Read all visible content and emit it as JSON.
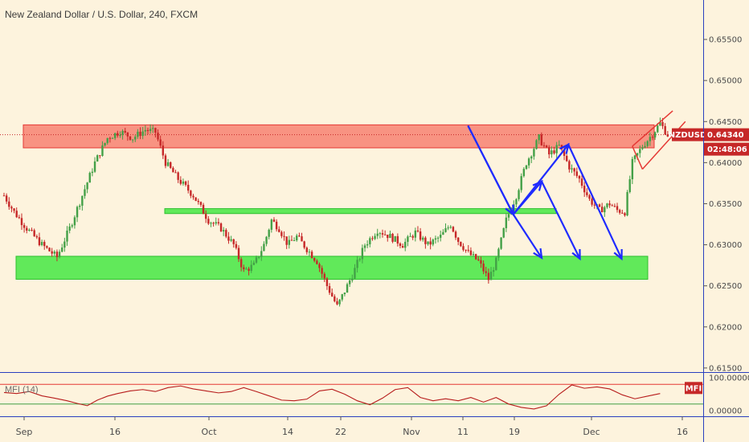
{
  "chart_data": {
    "type": "candlestick",
    "title": "New Zealand Dollar / U.S. Dollar, 240, FXCM",
    "symbol": "NZDUSD",
    "last_price": "0.64340",
    "countdown": "02:48:06",
    "price_axis": {
      "ylim": [
        0.6145,
        0.6598
      ],
      "ticks": [
        "0.65500",
        "0.65000",
        "0.64500",
        "0.64000",
        "0.63500",
        "0.63000",
        "0.62500",
        "0.62000",
        "0.61500"
      ]
    },
    "date_axis": {
      "labels": [
        "Sep",
        "16",
        "Oct",
        "14",
        "22",
        "Nov",
        "11",
        "19",
        "Dec",
        "16"
      ]
    },
    "zones": [
      {
        "kind": "resistance",
        "low": 0.6418,
        "high": 0.6446
      },
      {
        "kind": "support",
        "low": 0.6338,
        "high": 0.6344
      },
      {
        "kind": "support",
        "low": 0.6258,
        "high": 0.6286
      }
    ],
    "price_path": [
      [
        0,
        0.636
      ],
      [
        8,
        0.634
      ],
      [
        18,
        0.632
      ],
      [
        30,
        0.63
      ],
      [
        42,
        0.6285
      ],
      [
        52,
        0.632
      ],
      [
        62,
        0.636
      ],
      [
        72,
        0.64
      ],
      [
        82,
        0.643
      ],
      [
        92,
        0.6438
      ],
      [
        102,
        0.643
      ],
      [
        112,
        0.644
      ],
      [
        120,
        0.6437
      ],
      [
        128,
        0.64
      ],
      [
        138,
        0.638
      ],
      [
        150,
        0.636
      ],
      [
        162,
        0.633
      ],
      [
        172,
        0.632
      ],
      [
        182,
        0.63
      ],
      [
        190,
        0.6268
      ],
      [
        198,
        0.6275
      ],
      [
        206,
        0.63
      ],
      [
        212,
        0.633
      ],
      [
        218,
        0.632
      ],
      [
        225,
        0.63
      ],
      [
        232,
        0.631
      ],
      [
        240,
        0.6295
      ],
      [
        248,
        0.628
      ],
      [
        256,
        0.625
      ],
      [
        264,
        0.6225
      ],
      [
        272,
        0.625
      ],
      [
        278,
        0.627
      ],
      [
        286,
        0.63
      ],
      [
        296,
        0.6318
      ],
      [
        306,
        0.631
      ],
      [
        316,
        0.63
      ],
      [
        326,
        0.6315
      ],
      [
        336,
        0.63
      ],
      [
        346,
        0.631
      ],
      [
        354,
        0.6325
      ],
      [
        360,
        0.6305
      ],
      [
        368,
        0.629
      ],
      [
        376,
        0.628
      ],
      [
        384,
        0.6258
      ],
      [
        390,
        0.628
      ],
      [
        398,
        0.633
      ],
      [
        406,
        0.636
      ],
      [
        414,
        0.64
      ],
      [
        424,
        0.643
      ],
      [
        432,
        0.641
      ],
      [
        440,
        0.642
      ],
      [
        448,
        0.6395
      ],
      [
        456,
        0.638
      ],
      [
        464,
        0.6355
      ],
      [
        472,
        0.6342
      ],
      [
        480,
        0.635
      ],
      [
        486,
        0.6342
      ],
      [
        492,
        0.634
      ],
      [
        498,
        0.64
      ],
      [
        506,
        0.642
      ],
      [
        514,
        0.6435
      ],
      [
        520,
        0.6448
      ],
      [
        526,
        0.6434
      ]
    ],
    "pattern_channel": [
      [
        [
          498,
          0.642
        ],
        [
          530,
          0.6463
        ]
      ],
      [
        [
          506,
          0.6392
        ],
        [
          540,
          0.645
        ]
      ]
    ],
    "projection_paths": [
      [
        [
          527,
          0.6445
        ],
        [
          578,
          0.6337
        ],
        [
          610,
          0.6377
        ],
        [
          653,
          0.6283
        ]
      ],
      [
        [
          527,
          0.6445
        ],
        [
          578,
          0.6337
        ],
        [
          610,
          0.6284
        ]
      ],
      [
        [
          578,
          0.6337
        ],
        [
          640,
          0.6422
        ],
        [
          700,
          0.6283
        ]
      ]
    ],
    "indicator": {
      "name": "MFI (14)",
      "badge": "MFI",
      "ylim": [
        0,
        100
      ],
      "ticks": [
        "100.00000",
        "0.00000"
      ],
      "bands": [
        80,
        20
      ],
      "values": [
        [
          0,
          55
        ],
        [
          10,
          52
        ],
        [
          20,
          58
        ],
        [
          30,
          45
        ],
        [
          40,
          38
        ],
        [
          50,
          30
        ],
        [
          58,
          22
        ],
        [
          66,
          15
        ],
        [
          74,
          32
        ],
        [
          82,
          44
        ],
        [
          90,
          52
        ],
        [
          100,
          60
        ],
        [
          110,
          64
        ],
        [
          120,
          58
        ],
        [
          130,
          70
        ],
        [
          140,
          75
        ],
        [
          150,
          66
        ],
        [
          160,
          60
        ],
        [
          170,
          54
        ],
        [
          180,
          58
        ],
        [
          190,
          70
        ],
        [
          200,
          58
        ],
        [
          210,
          45
        ],
        [
          220,
          32
        ],
        [
          230,
          30
        ],
        [
          240,
          35
        ],
        [
          250,
          60
        ],
        [
          260,
          65
        ],
        [
          270,
          50
        ],
        [
          280,
          30
        ],
        [
          290,
          18
        ],
        [
          300,
          38
        ],
        [
          310,
          64
        ],
        [
          320,
          70
        ],
        [
          330,
          40
        ],
        [
          340,
          30
        ],
        [
          350,
          36
        ],
        [
          360,
          30
        ],
        [
          370,
          40
        ],
        [
          380,
          26
        ],
        [
          390,
          40
        ],
        [
          400,
          20
        ],
        [
          410,
          10
        ],
        [
          420,
          5
        ],
        [
          430,
          15
        ],
        [
          440,
          50
        ],
        [
          450,
          78
        ],
        [
          460,
          68
        ],
        [
          470,
          72
        ],
        [
          480,
          66
        ],
        [
          490,
          48
        ],
        [
          500,
          36
        ],
        [
          510,
          44
        ],
        [
          520,
          52
        ]
      ]
    }
  }
}
